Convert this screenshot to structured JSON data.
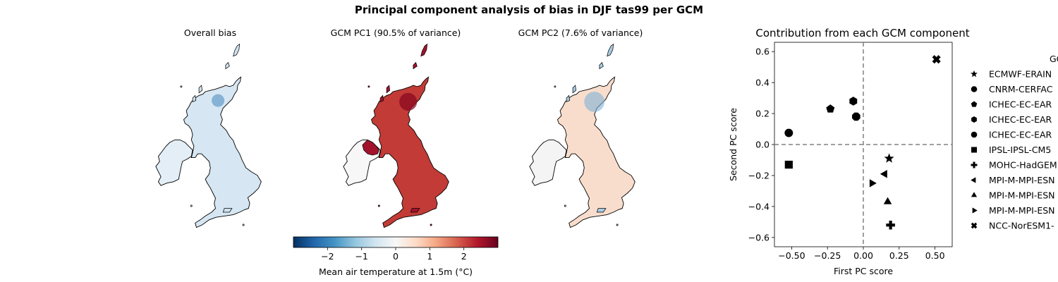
{
  "figure": {
    "suptitle": "Principal component analysis of bias in DJF tas99 per GCM",
    "map_titles": [
      "Overall bias",
      "GCM PC1 (90.5% of variance)",
      "GCM PC2 (7.6% of variance)"
    ],
    "colorbar": {
      "label": "Mean air temperature at 1.5m (°C)",
      "ticks": [
        "−2",
        "−1",
        "0",
        "1",
        "2"
      ],
      "range": [
        -3,
        3
      ],
      "colormap": "RdBu_r",
      "colors": [
        "#053061",
        "#2166ac",
        "#4393c3",
        "#92c5de",
        "#d1e5f0",
        "#f7f7f7",
        "#fddbc7",
        "#f4a582",
        "#d6604d",
        "#b2182b",
        "#67001f"
      ]
    },
    "maps": [
      {
        "name": "overall-bias",
        "land_color": "#d6e6f2",
        "ireland_color": "#e3eef6",
        "accent_color": "#4f8fc2",
        "description": "mostly light blue"
      },
      {
        "name": "pc1",
        "land_color": "#c23b36",
        "ireland_color": "#f7f7f7",
        "accent_color": "#8a0a22",
        "ni_color": "#a3122b"
      },
      {
        "name": "pc2",
        "land_color": "#f9ddcc",
        "ireland_color": "#f4f4f4",
        "accent_color": "#7fb3d7"
      }
    ]
  },
  "chart_data": {
    "type": "scatter",
    "title": "Contribution from each GCM component",
    "xlabel": "First PC score",
    "ylabel": "Second PC score",
    "xlim": [
      -0.62,
      0.62
    ],
    "ylim": [
      -0.66,
      0.66
    ],
    "xticks": [
      -0.5,
      -0.25,
      0.0,
      0.25,
      0.5
    ],
    "xtick_labels": [
      "−0.50",
      "−0.25",
      "0.00",
      "0.25",
      "0.50"
    ],
    "yticks": [
      -0.6,
      -0.4,
      -0.2,
      0.0,
      0.2,
      0.4,
      0.6
    ],
    "ytick_labels": [
      "−0.6",
      "−0.4",
      "−0.2",
      "0.0",
      "0.2",
      "0.4",
      "0.6"
    ],
    "reference_lines": {
      "x": 0,
      "y": 0,
      "style": "dashed",
      "color": "#808080"
    },
    "legend_title": "GC",
    "legend_position": "right, outside plot (clipped)",
    "series": [
      {
        "name": "ECMWF-ERAIN",
        "marker": "star",
        "x": 0.18,
        "y": -0.09
      },
      {
        "name": "CNRM-CERFAC",
        "marker": "circle",
        "x": -0.52,
        "y": 0.075
      },
      {
        "name": "ICHEC-EC-EAR",
        "marker": "pentagon",
        "x": -0.23,
        "y": 0.23
      },
      {
        "name": "ICHEC-EC-EAR",
        "marker": "hexagon",
        "x": -0.07,
        "y": 0.28
      },
      {
        "name": "ICHEC-EC-EAR",
        "marker": "octagon",
        "x": -0.05,
        "y": 0.18
      },
      {
        "name": "IPSL-IPSL-CM5",
        "marker": "square",
        "x": -0.52,
        "y": -0.13
      },
      {
        "name": "MOHC-HadGEM",
        "marker": "plus",
        "x": 0.19,
        "y": -0.52
      },
      {
        "name": "MPI-M-MPI-ESN",
        "marker": "triangle-left",
        "x": 0.15,
        "y": -0.19
      },
      {
        "name": "MPI-M-MPI-ESN",
        "marker": "triangle-up",
        "x": 0.17,
        "y": -0.37
      },
      {
        "name": "MPI-M-MPI-ESN",
        "marker": "triangle-right",
        "x": 0.06,
        "y": -0.25
      },
      {
        "name": "NCC-NorESM1-",
        "marker": "x-filled",
        "x": 0.51,
        "y": 0.55
      }
    ]
  }
}
